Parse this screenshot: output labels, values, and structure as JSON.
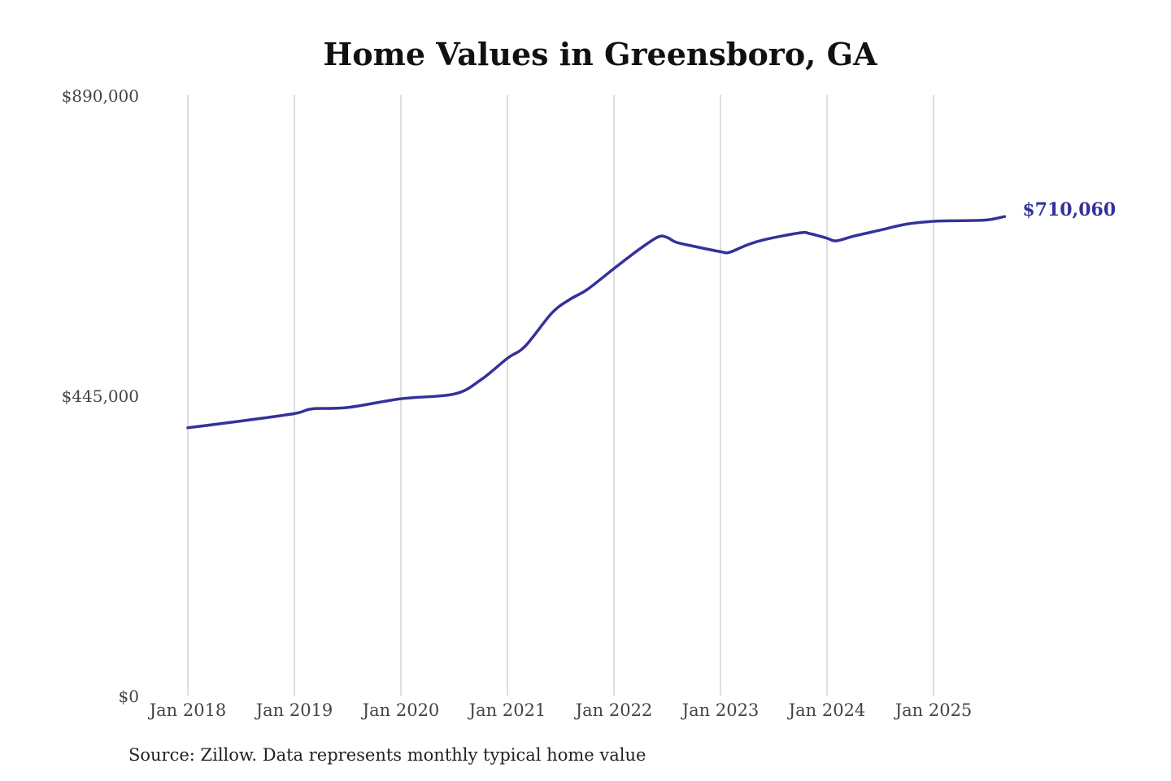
{
  "chart_data": {
    "type": "line",
    "title": "Home Values in Greensboro, GA",
    "xlabel": "",
    "ylabel": "",
    "ylim": [
      0,
      890000
    ],
    "yticks": [
      0,
      445000,
      890000
    ],
    "ytick_labels": [
      "$0",
      "$445,000",
      "$890,000"
    ],
    "xticks": [
      "2018-01",
      "2019-01",
      "2020-01",
      "2021-01",
      "2022-01",
      "2023-01",
      "2024-01",
      "2025-01"
    ],
    "xtick_labels": [
      "Jan 2018",
      "Jan 2019",
      "Jan 2020",
      "Jan 2021",
      "Jan 2022",
      "Jan 2023",
      "Jan 2024",
      "Jan 2025"
    ],
    "grid": "vertical",
    "color": "#35319a",
    "end_label": "$710,060",
    "series": [
      {
        "points": [
          [
            "2018-01",
            397000
          ],
          [
            "2018-07",
            407000
          ],
          [
            "2019-01",
            418000
          ],
          [
            "2019-03",
            425000
          ],
          [
            "2019-07",
            427000
          ],
          [
            "2020-01",
            440000
          ],
          [
            "2020-07",
            447000
          ],
          [
            "2020-10",
            468000
          ],
          [
            "2021-01",
            500000
          ],
          [
            "2021-03",
            518000
          ],
          [
            "2021-06",
            567000
          ],
          [
            "2021-08",
            587000
          ],
          [
            "2021-10",
            602000
          ],
          [
            "2022-01",
            633000
          ],
          [
            "2022-04",
            663000
          ],
          [
            "2022-06",
            680000
          ],
          [
            "2022-07",
            679000
          ],
          [
            "2022-08",
            672000
          ],
          [
            "2022-10",
            666000
          ],
          [
            "2023-01",
            658000
          ],
          [
            "2023-02",
            657000
          ],
          [
            "2023-04",
            668000
          ],
          [
            "2023-06",
            676000
          ],
          [
            "2023-10",
            686000
          ],
          [
            "2023-11",
            685000
          ],
          [
            "2024-01",
            678000
          ],
          [
            "2024-02",
            674000
          ],
          [
            "2024-04",
            681000
          ],
          [
            "2024-07",
            690000
          ],
          [
            "2024-10",
            699000
          ],
          [
            "2025-01",
            703000
          ],
          [
            "2025-04",
            704000
          ],
          [
            "2025-07",
            705000
          ],
          [
            "2025-09",
            710060
          ]
        ]
      }
    ]
  },
  "source": "Source: Zillow. Data represents monthly typical home value"
}
